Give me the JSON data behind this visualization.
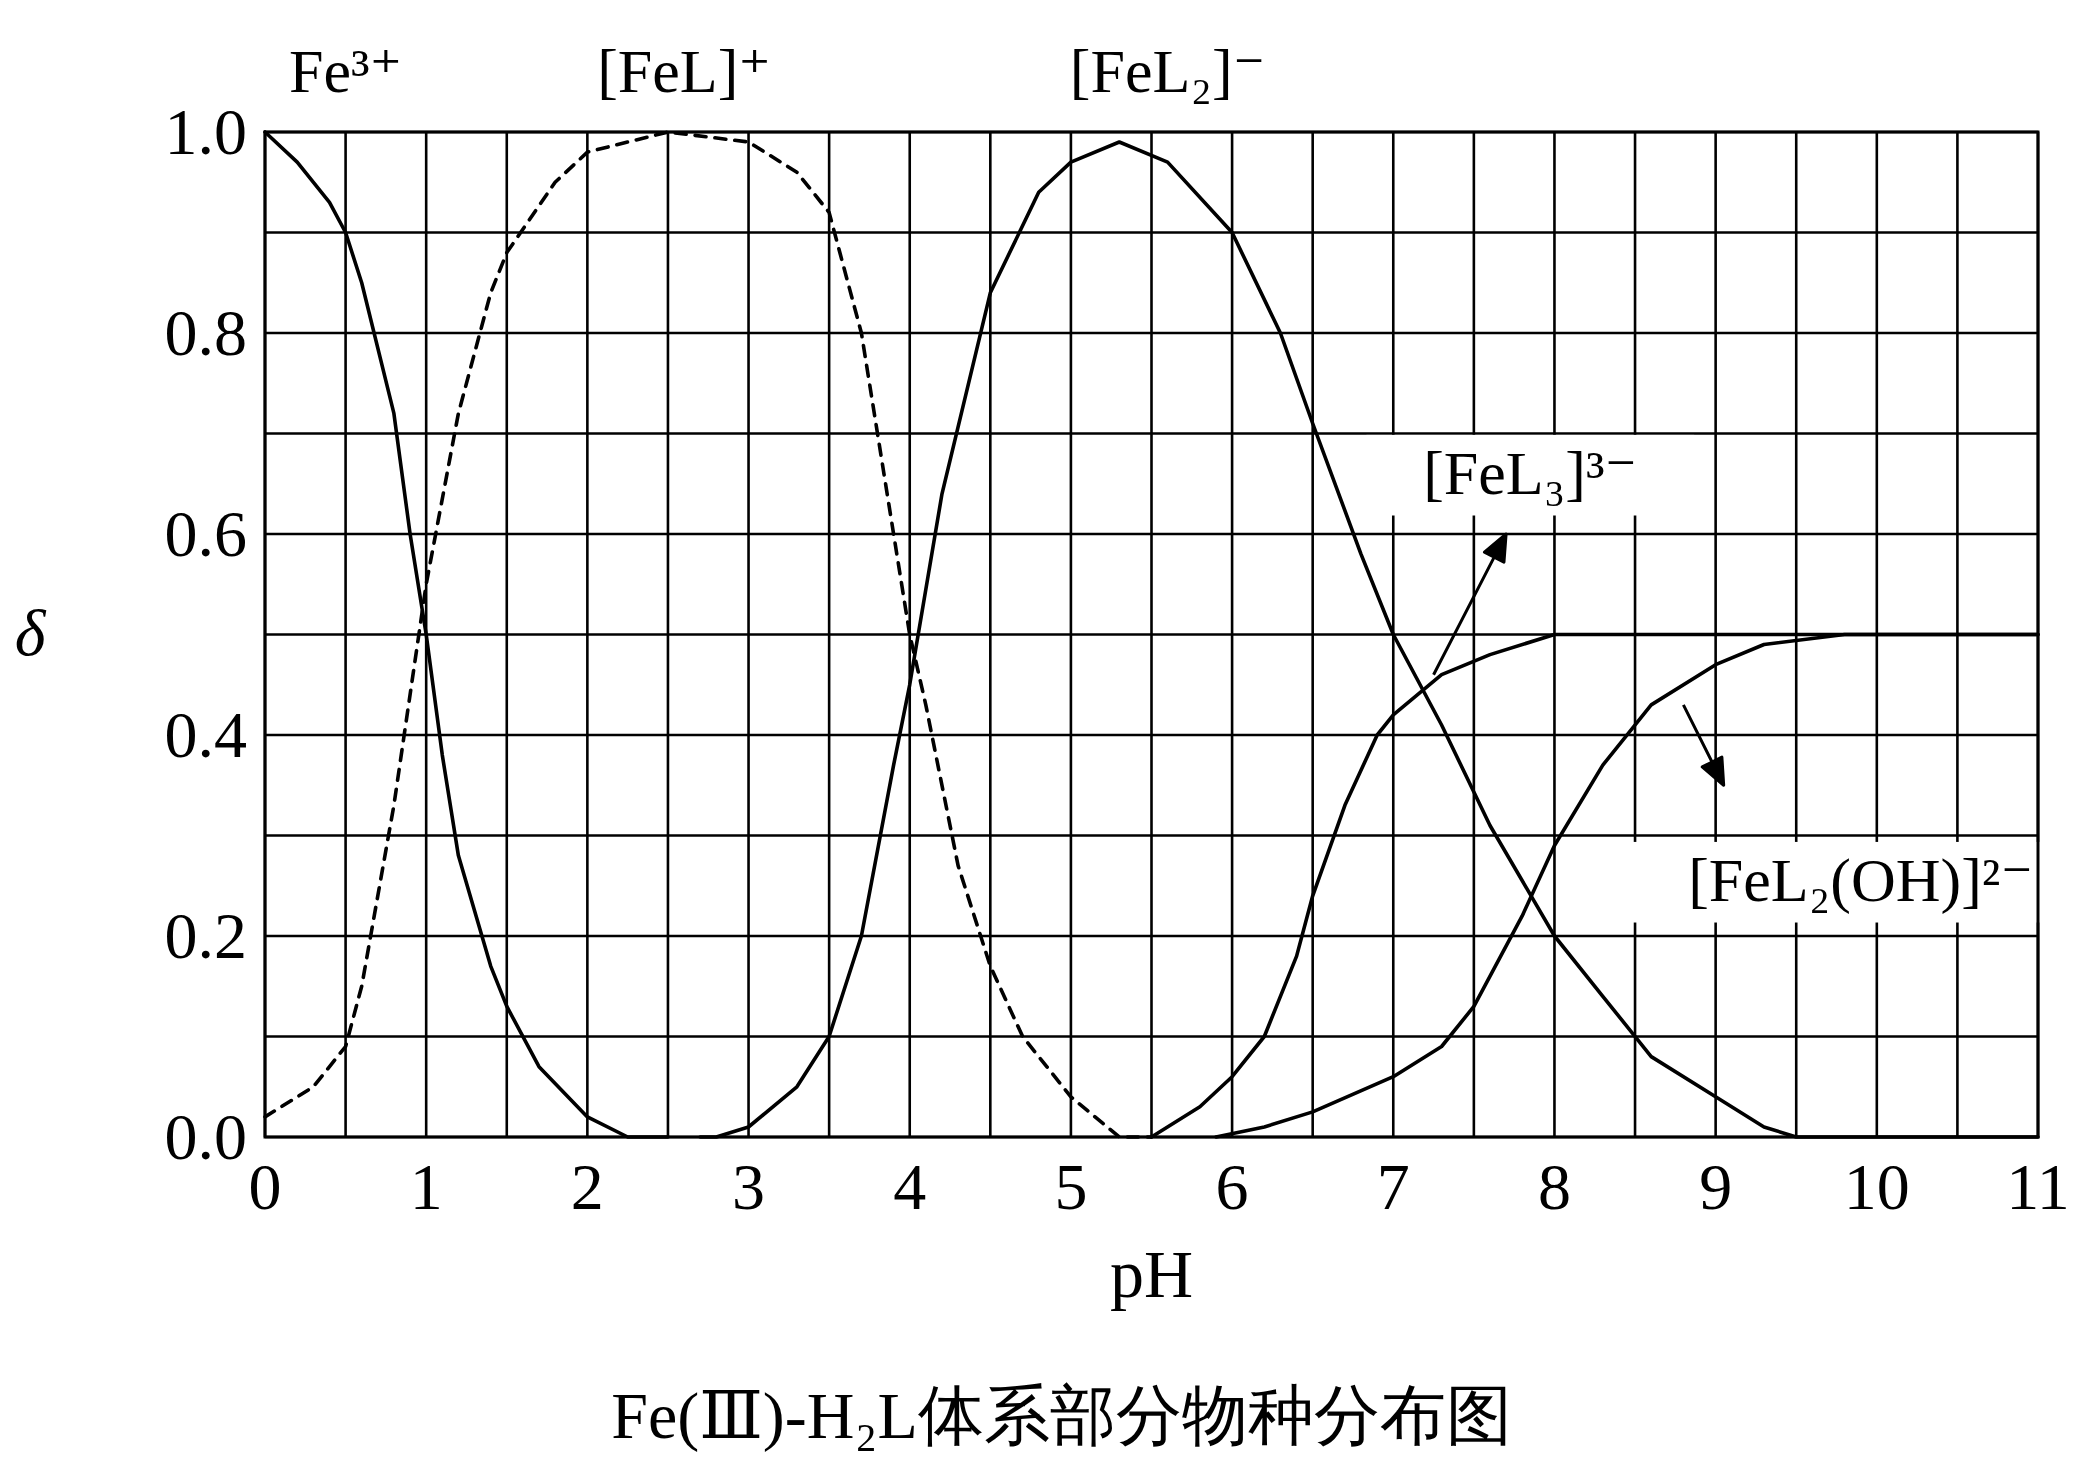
{
  "chart_data": {
    "type": "line",
    "title": "Fe(Ⅲ)-H₂L体系部分物种分布图",
    "xlabel": "pH",
    "ylabel": "δ",
    "xlim": [
      0,
      11
    ],
    "ylim": [
      0,
      1
    ],
    "xticks": [
      0,
      {
        "value": 0.5,
        "label": null
      },
      1,
      {
        "value": 1.5,
        "label": null
      },
      2,
      {
        "value": 2.5,
        "label": null
      },
      3,
      {
        "value": 3.5,
        "label": null
      },
      4,
      {
        "value": 4.5,
        "label": null
      },
      5,
      {
        "value": 5.5,
        "label": null
      },
      6,
      {
        "value": 6.5,
        "label": null
      },
      7,
      {
        "value": 7.5,
        "label": null
      },
      8,
      {
        "value": 8.5,
        "label": null
      },
      9,
      {
        "value": 9.5,
        "label": null
      },
      10,
      {
        "value": 10.5,
        "label": null
      },
      11
    ],
    "yticks": [
      {
        "value": 0,
        "label": "0.0"
      },
      {
        "value": 0.1,
        "label": null
      },
      {
        "value": 0.2,
        "label": "0.2"
      },
      {
        "value": 0.3,
        "label": null
      },
      {
        "value": 0.4,
        "label": "0.4"
      },
      {
        "value": 0.5,
        "label": null
      },
      {
        "value": 0.6,
        "label": "0.6"
      },
      {
        "value": 0.7,
        "label": null
      },
      {
        "value": 0.8,
        "label": "0.8"
      },
      {
        "value": 0.9,
        "label": null
      },
      {
        "value": 1,
        "label": "1.0"
      }
    ],
    "grid": true,
    "marker": "none",
    "series": [
      {
        "name": "Fe³⁺",
        "color": "#000000",
        "line_style": "solid",
        "x": [
          0,
          0.2,
          0.4,
          0.5,
          0.6,
          0.8,
          0.9,
          1.0,
          1.1,
          1.2,
          1.4,
          1.5,
          1.7,
          2.0,
          2.25,
          2.5
        ],
        "values": [
          1.0,
          0.97,
          0.93,
          0.9,
          0.85,
          0.72,
          0.6,
          0.5,
          0.38,
          0.28,
          0.17,
          0.13,
          0.07,
          0.02,
          0.0,
          0.0
        ]
      },
      {
        "name": "[FeL]⁺",
        "color": "#000000",
        "line_style": "dashed",
        "x": [
          0,
          0.3,
          0.5,
          0.6,
          0.8,
          1.0,
          1.2,
          1.4,
          1.5,
          1.8,
          2.0,
          2.5,
          3.0,
          3.3,
          3.5,
          3.7,
          3.8,
          4.0,
          4.1,
          4.3,
          4.5,
          4.7,
          5.0,
          5.3,
          5.5
        ],
        "values": [
          0.02,
          0.05,
          0.09,
          0.15,
          0.33,
          0.55,
          0.72,
          0.84,
          0.88,
          0.95,
          0.98,
          1.0,
          0.99,
          0.96,
          0.92,
          0.8,
          0.7,
          0.5,
          0.43,
          0.27,
          0.17,
          0.1,
          0.04,
          0.0,
          0.0
        ]
      },
      {
        "name": "[FeL₂]⁻",
        "color": "#000000",
        "line_style": "solid",
        "x": [
          2.7,
          2.8,
          3.0,
          3.3,
          3.5,
          3.7,
          3.9,
          4.0,
          4.2,
          4.5,
          4.8,
          5.0,
          5.3,
          5.6,
          6.0,
          6.3,
          6.5,
          6.8,
          7.0,
          7.3,
          7.6,
          8.0,
          8.3,
          8.6,
          9.0,
          9.3,
          9.5,
          11
        ],
        "values": [
          0,
          0,
          0.01,
          0.05,
          0.1,
          0.2,
          0.37,
          0.45,
          0.64,
          0.84,
          0.94,
          0.97,
          0.99,
          0.97,
          0.9,
          0.8,
          0.71,
          0.58,
          0.5,
          0.41,
          0.31,
          0.2,
          0.14,
          0.08,
          0.04,
          0.01,
          0,
          0
        ]
      },
      {
        "name": "[FeL₃]³⁻",
        "color": "#000000",
        "line_style": "solid",
        "x": [
          5.5,
          5.8,
          6.0,
          6.2,
          6.4,
          6.5,
          6.7,
          6.9,
          7.0,
          7.3,
          7.6,
          8.0,
          8.1,
          11
        ],
        "values": [
          0,
          0.03,
          0.06,
          0.1,
          0.18,
          0.24,
          0.33,
          0.4,
          0.42,
          0.46,
          0.48,
          0.5,
          0.5,
          0.5
        ]
      },
      {
        "name": "[FeL₂(OH)]²⁻",
        "color": "#000000",
        "line_style": "solid",
        "x": [
          5.9,
          6.2,
          6.5,
          7.0,
          7.3,
          7.5,
          7.8,
          8.0,
          8.3,
          8.6,
          9.0,
          9.3,
          9.8,
          11
        ],
        "values": [
          0,
          0.01,
          0.025,
          0.06,
          0.09,
          0.13,
          0.22,
          0.29,
          0.37,
          0.43,
          0.47,
          0.49,
          0.5,
          0.5
        ]
      }
    ]
  }
}
